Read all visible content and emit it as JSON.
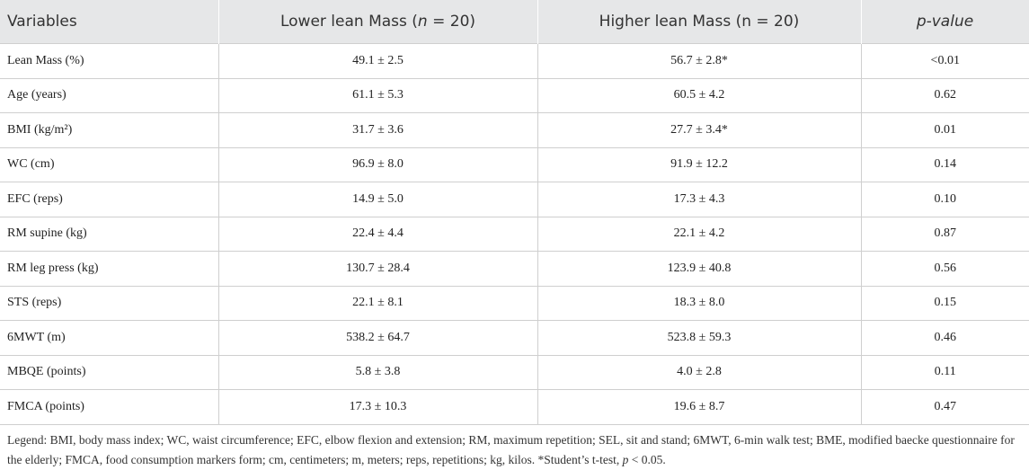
{
  "table": {
    "header": [
      "Variables",
      [
        "Lower lean Mass (",
        "n",
        " = 20)"
      ],
      "Higher lean Mass (n = 20)",
      "p-value"
    ],
    "rows": [
      [
        "Lean Mass (%)",
        "49.1 ± 2.5",
        "56.7 ± 2.8*",
        "<0.01"
      ],
      [
        "Age (years)",
        "61.1 ± 5.3",
        "60.5 ± 4.2",
        "0.62"
      ],
      [
        "BMI (kg/m²)",
        "31.7 ± 3.6",
        "27.7 ± 3.4*",
        "0.01"
      ],
      [
        "WC (cm)",
        "96.9 ± 8.0",
        "91.9 ± 12.2",
        "0.14"
      ],
      [
        "EFC (reps)",
        "14.9 ± 5.0",
        "17.3 ± 4.3",
        "0.10"
      ],
      [
        "RM supine (kg)",
        "22.4 ± 4.4",
        "22.1 ± 4.2",
        "0.87"
      ],
      [
        "RM leg press (kg)",
        "130.7 ± 28.4",
        "123.9 ± 40.8",
        "0.56"
      ],
      [
        "STS (reps)",
        "22.1 ± 8.1",
        "18.3 ± 8.0",
        "0.15"
      ],
      [
        "6MWT (m)",
        "538.2 ± 64.7",
        "523.8 ± 59.3",
        "0.46"
      ],
      [
        "MBQE (points)",
        "5.8 ± 3.8",
        "4.0 ± 2.8",
        "0.11"
      ],
      [
        "FMCA (points)",
        "17.3 ± 10.3",
        "19.6 ± 8.7",
        "0.47"
      ]
    ]
  },
  "legend": [
    "Legend: BMI, body mass index; WC, waist circumference; EFC, elbow flexion and extension; RM, maximum repetition; SEL, sit and stand; 6MWT, 6-min walk test; BME, modified baecke questionnaire for the elderly; FMCA, food consumption markers form; cm, centimeters; m, meters; reps, repetitions; kg, kilos. *Student’s t-test, ",
    "p",
    " < 0.05."
  ]
}
